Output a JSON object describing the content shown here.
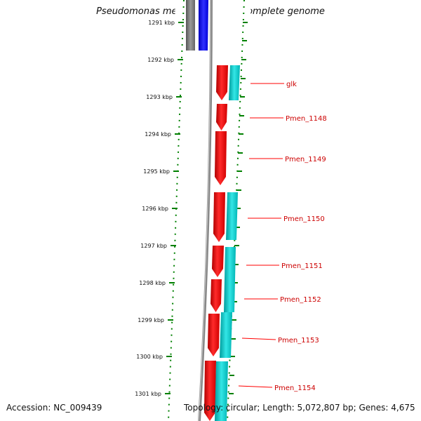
{
  "title": "Pseudomonas mendocina ymp, complete genome",
  "accession_text": "Accession: NC_009439",
  "topology_text": "Topology: circular; Length: 5,072,807 bp; Genes: 4,675",
  "ticks": [
    "1291 kbp",
    "1292 kbp",
    "1293 kbp",
    "1294 kbp",
    "1295 kbp",
    "1296 kbp",
    "1297 kbp",
    "1298 kbp",
    "1299 kbp",
    "1300 kbp",
    "1301 kbp"
  ],
  "genes": [
    "glk",
    "Pmen_1148",
    "Pmen_1149",
    "Pmen_1150",
    "Pmen_1151",
    "Pmen_1152",
    "Pmen_1153",
    "Pmen_1154"
  ],
  "colors": {
    "forward_gene": "#ff0000",
    "cds": "#00c8c8",
    "other_gene": "#777777",
    "rna": "#0000ff",
    "tick": "#008000",
    "backbone": "#888888"
  }
}
